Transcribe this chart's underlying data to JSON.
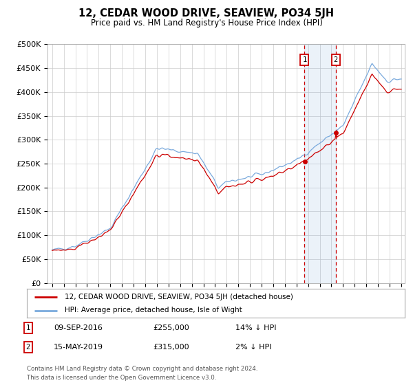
{
  "title": "12, CEDAR WOOD DRIVE, SEAVIEW, PO34 5JH",
  "subtitle": "Price paid vs. HM Land Registry's House Price Index (HPI)",
  "legend_line1": "12, CEDAR WOOD DRIVE, SEAVIEW, PO34 5JH (detached house)",
  "legend_line2": "HPI: Average price, detached house, Isle of Wight",
  "transaction1_date": "09-SEP-2016",
  "transaction1_price": 255000,
  "transaction1_label": "14% ↓ HPI",
  "transaction2_date": "15-MAY-2019",
  "transaction2_price": 315000,
  "transaction2_label": "2% ↓ HPI",
  "footnote1": "Contains HM Land Registry data © Crown copyright and database right 2024.",
  "footnote2": "This data is licensed under the Open Government Licence v3.0.",
  "ylim_min": 0,
  "ylim_max": 500000,
  "hpi_color": "#7aaadd",
  "property_color": "#cc0000",
  "transaction1_x": 2016.69,
  "transaction2_x": 2019.37,
  "shade_alpha": 0.15,
  "grid_color": "#cccccc",
  "background_color": "#ffffff"
}
